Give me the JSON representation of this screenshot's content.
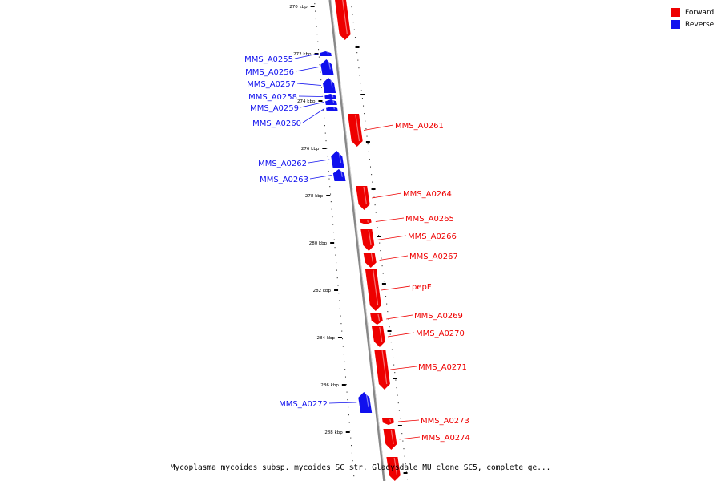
{
  "colors": {
    "forward": "#ee0000",
    "reverse": "#1010ee",
    "backbone": "#888888"
  },
  "legend": {
    "forward_label": "Forward",
    "reverse_label": "Reverse"
  },
  "caption": "Mycoplasma mycoides subsp. mycoides SC str. Gladysdale MU clone SC5, complete ge...",
  "ticks": [
    {
      "label": "270 kbp",
      "kbp": 270
    },
    {
      "label": "272 kbp",
      "kbp": 272
    },
    {
      "label": "274 kbp",
      "kbp": 274
    },
    {
      "label": "276 kbp",
      "kbp": 276
    },
    {
      "label": "278 kbp",
      "kbp": 278
    },
    {
      "label": "280 kbp",
      "kbp": 280
    },
    {
      "label": "282 kbp",
      "kbp": 282
    },
    {
      "label": "284 kbp",
      "kbp": 284
    },
    {
      "label": "286 kbp",
      "kbp": 286
    },
    {
      "label": "288 kbp",
      "kbp": 288
    }
  ],
  "genes": [
    {
      "name": "",
      "strand": "forward"
    },
    {
      "name": "MMS_A0255",
      "strand": "reverse"
    },
    {
      "name": "MMS_A0256",
      "strand": "reverse"
    },
    {
      "name": "MMS_A0257",
      "strand": "reverse"
    },
    {
      "name": "MMS_A0258",
      "strand": "reverse"
    },
    {
      "name": "MMS_A0259",
      "strand": "reverse"
    },
    {
      "name": "MMS_A0260",
      "strand": "reverse"
    },
    {
      "name": "MMS_A0261",
      "strand": "forward"
    },
    {
      "name": "MMS_A0262",
      "strand": "reverse"
    },
    {
      "name": "MMS_A0263",
      "strand": "reverse"
    },
    {
      "name": "MMS_A0264",
      "strand": "forward"
    },
    {
      "name": "MMS_A0265",
      "strand": "forward"
    },
    {
      "name": "MMS_A0266",
      "strand": "forward"
    },
    {
      "name": "MMS_A0267",
      "strand": "forward"
    },
    {
      "name": "pepF",
      "strand": "forward"
    },
    {
      "name": "MMS_A0269",
      "strand": "forward"
    },
    {
      "name": "MMS_A0270",
      "strand": "forward"
    },
    {
      "name": "MMS_A0271",
      "strand": "forward"
    },
    {
      "name": "MMS_A0272",
      "strand": "reverse"
    },
    {
      "name": "MMS_A0273",
      "strand": "forward"
    },
    {
      "name": "MMS_A0274",
      "strand": "forward"
    },
    {
      "name": "",
      "strand": "forward"
    }
  ]
}
